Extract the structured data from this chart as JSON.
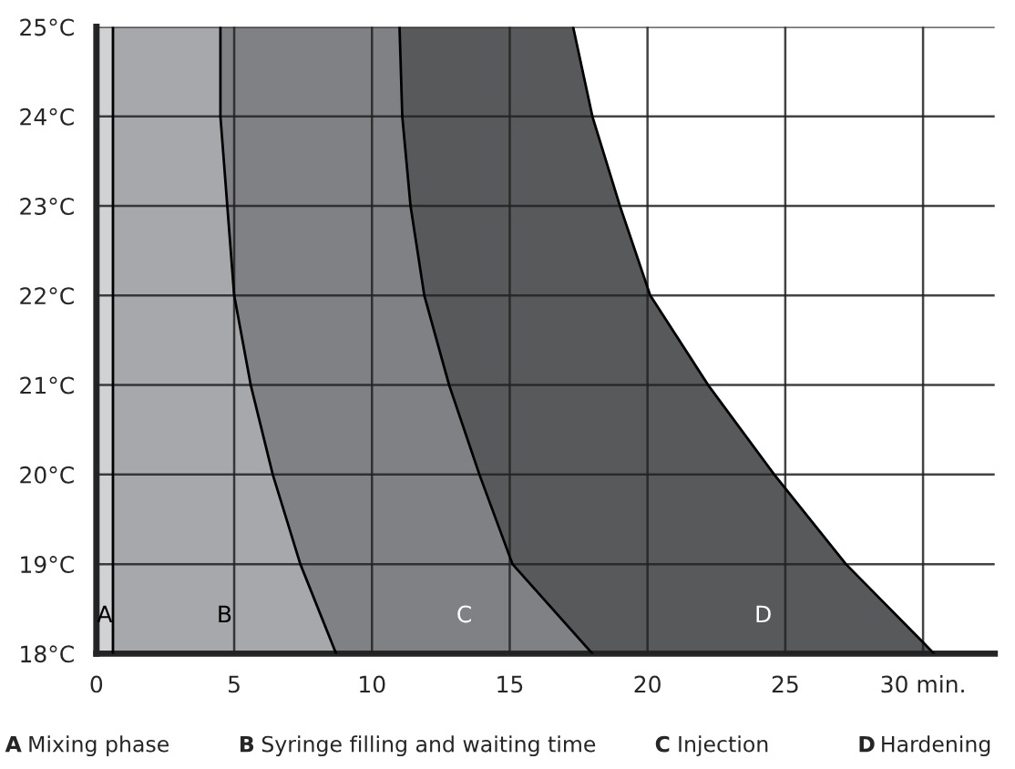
{
  "chart_data": {
    "type": "area",
    "orientation": "horizontal",
    "stacked": true,
    "x": [
      18,
      19,
      20,
      21,
      22,
      23,
      24,
      25
    ],
    "series": [
      {
        "name": "A",
        "color": "#d1d2d4",
        "values": [
          0.6,
          0.6,
          0.6,
          0.6,
          0.6,
          0.6,
          0.6,
          0.6
        ]
      },
      {
        "name": "B",
        "color": "#a7a8ab",
        "values": [
          8.1,
          6.8,
          5.8,
          5.0,
          4.4,
          4.15,
          3.9,
          3.9
        ]
      },
      {
        "name": "C",
        "color": "#808184",
        "values": [
          9.3,
          7.7,
          7.5,
          7.2,
          6.9,
          6.65,
          6.6,
          6.5
        ]
      },
      {
        "name": "D",
        "color": "#58595b",
        "values": [
          12.4,
          12.1,
          10.7,
          9.4,
          8.2,
          7.6,
          6.9,
          6.3
        ]
      }
    ],
    "xlim": [
      0,
      32.6
    ],
    "xticks": [
      0,
      5,
      10,
      15,
      20,
      25,
      {
        "value": 30,
        "label": "30 min."
      }
    ],
    "ylim": [
      18,
      25
    ],
    "yticks": [
      {
        "value": 18,
        "label": "18°C"
      },
      {
        "value": 19,
        "label": "19°C"
      },
      {
        "value": 20,
        "label": "20°C"
      },
      {
        "value": 21,
        "label": "21°C"
      },
      {
        "value": 22,
        "label": "22°C"
      },
      {
        "value": 23,
        "label": "23°C"
      },
      {
        "value": 24,
        "label": "24°C"
      },
      {
        "value": 25,
        "label": "25°C"
      }
    ],
    "grid": true,
    "legend": "bottom",
    "annotations": [
      "Mixing phase",
      "Syringe filling and waiting time",
      "Injection",
      "Hardening"
    ]
  }
}
